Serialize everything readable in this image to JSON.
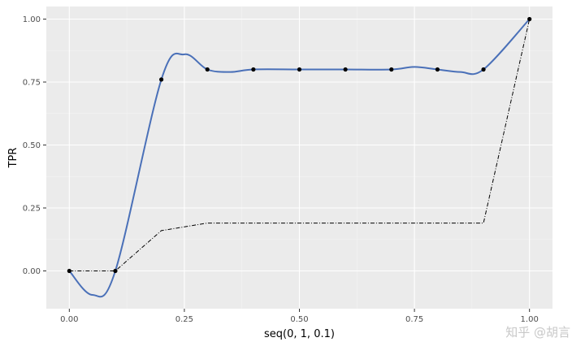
{
  "chart_data": {
    "type": "line",
    "xlabel": "seq(0, 1, 0.1)",
    "ylabel": "TPR",
    "xlim": [
      -0.05,
      1.05
    ],
    "ylim": [
      -0.15,
      1.05
    ],
    "x_ticks": [
      0.0,
      0.25,
      0.5,
      0.75,
      1.0
    ],
    "x_tick_labels": [
      "0.00",
      "0.25",
      "0.50",
      "0.75",
      "1.00"
    ],
    "y_ticks": [
      0.0,
      0.25,
      0.5,
      0.75,
      1.0
    ],
    "y_tick_labels": [
      "0.00",
      "0.25",
      "0.50",
      "0.75",
      "1.00"
    ],
    "grid": true,
    "series": [
      {
        "style": "points",
        "color": "#000000",
        "x": [
          0.0,
          0.1,
          0.2,
          0.3,
          0.4,
          0.5,
          0.6,
          0.7,
          0.8,
          0.9,
          1.0
        ],
        "y": [
          0.0,
          0.0,
          0.76,
          0.8,
          0.8,
          0.8,
          0.8,
          0.8,
          0.8,
          0.8,
          1.0
        ]
      },
      {
        "style": "smooth",
        "color": "#4a70b8",
        "x": [
          0.0,
          0.05,
          0.1,
          0.2,
          0.25,
          0.3,
          0.35,
          0.4,
          0.5,
          0.6,
          0.7,
          0.75,
          0.8,
          0.85,
          0.9,
          1.0
        ],
        "y": [
          0.0,
          -0.095,
          0.0,
          0.76,
          0.86,
          0.8,
          0.79,
          0.8,
          0.8,
          0.8,
          0.8,
          0.81,
          0.8,
          0.79,
          0.8,
          1.0
        ]
      },
      {
        "style": "dashdot",
        "color": "#000000",
        "x": [
          0.0,
          0.1,
          0.2,
          0.3,
          0.4,
          0.5,
          0.6,
          0.7,
          0.8,
          0.9,
          1.0
        ],
        "y": [
          0.0,
          0.0,
          0.16,
          0.19,
          0.19,
          0.19,
          0.19,
          0.19,
          0.19,
          0.19,
          1.0
        ]
      }
    ]
  },
  "watermark": "知乎 @胡言",
  "colors": {
    "panel_background": "#ebebeb",
    "grid_major": "#ffffff",
    "tick": "#333333"
  }
}
